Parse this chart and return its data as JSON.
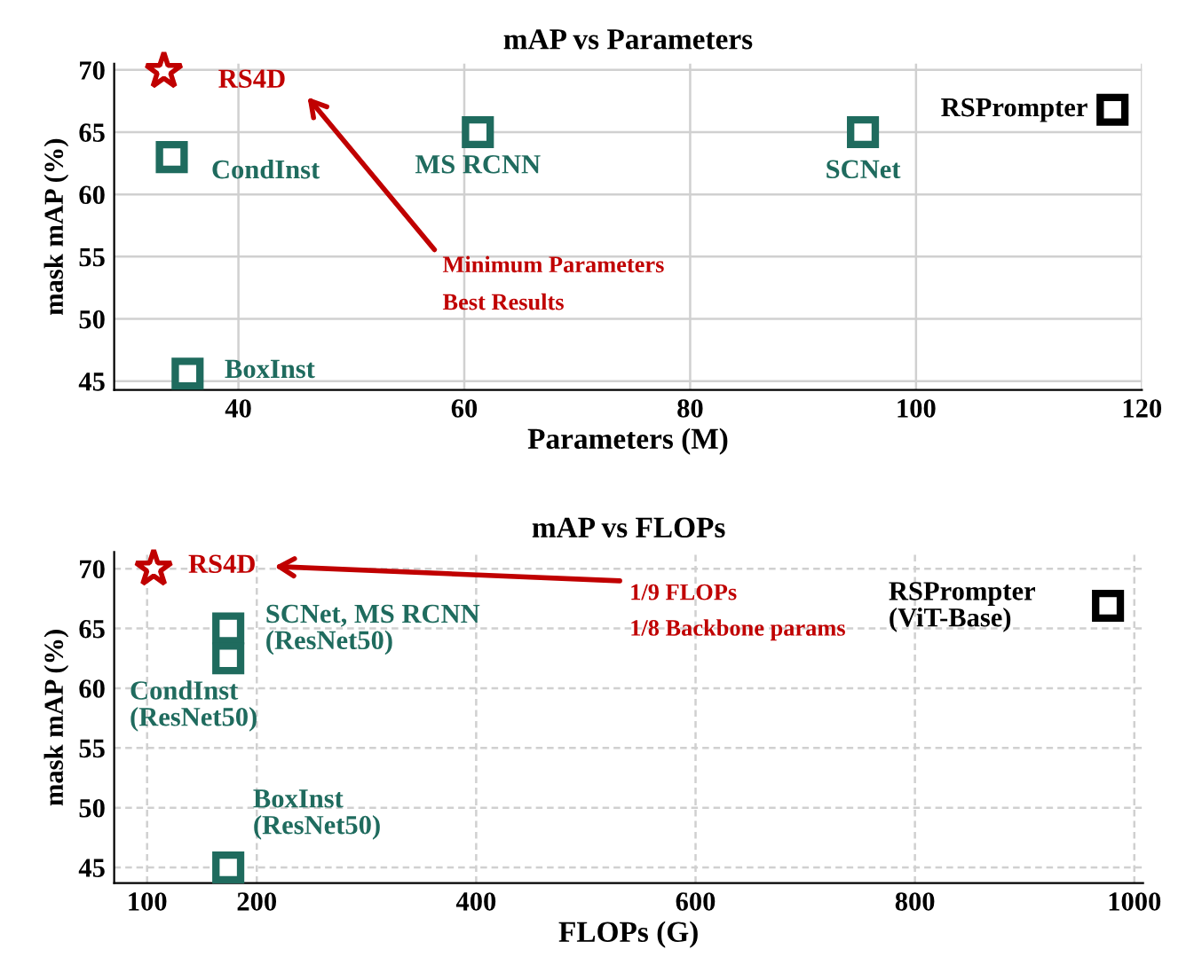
{
  "chart_data": [
    {
      "type": "scatter",
      "title": "mAP vs Parameters",
      "xlabel": "Parameters (M)",
      "ylabel": "mask mAP (%)",
      "xlim": [
        29,
        120
      ],
      "ylim": [
        44.3,
        70.5
      ],
      "xticks": [
        40,
        60,
        80,
        100,
        120
      ],
      "yticks": [
        45,
        50,
        55,
        60,
        65,
        70
      ],
      "grid": true,
      "legend": false,
      "series": [
        {
          "color": "#c00000",
          "marker": "star",
          "x": [
            33.4
          ],
          "values": [
            69.9
          ]
        },
        {
          "color": "#1f6b5e",
          "marker": "square",
          "x": [
            34.1,
            35.5,
            61.2,
            95.3
          ],
          "values": [
            63.0,
            45.6,
            65.0,
            65.0
          ]
        },
        {
          "color": "#000000",
          "marker": "square",
          "x": [
            117.4
          ],
          "values": [
            66.8
          ]
        }
      ],
      "annotations": [
        {
          "text": "RS4D",
          "x": 33.4,
          "y": 69.9
        },
        {
          "text": "CondInst",
          "x": 34.1,
          "y": 63.0
        },
        {
          "text": "MS RCNN",
          "x": 61.2,
          "y": 65.0
        },
        {
          "text": "SCNet",
          "x": 95.3,
          "y": 65.0
        },
        {
          "text": "RSPrompter",
          "x": 117.4,
          "y": 66.8
        },
        {
          "text": "BoxInst",
          "x": 35.5,
          "y": 45.6
        },
        "Minimum Parameters\nBest Results"
      ]
    },
    {
      "type": "scatter",
      "title": "mAP vs FLOPs",
      "xlabel": "FLOPs (G)",
      "ylabel": "mask mAP (%)",
      "xlim": [
        70,
        1008
      ],
      "ylim": [
        43.7,
        71.4
      ],
      "xticks": [
        100,
        200,
        400,
        600,
        800,
        1000
      ],
      "yticks": [
        45,
        50,
        55,
        60,
        65,
        70
      ],
      "grid": true,
      "legend": false,
      "series": [
        {
          "color": "#c00000",
          "marker": "star",
          "x": [
            106
          ],
          "values": [
            70.0
          ]
        },
        {
          "color": "#1f6b5e",
          "marker": "square",
          "x": [
            174,
            174,
            174
          ],
          "values": [
            65.0,
            62.5,
            45.0
          ]
        },
        {
          "color": "#000000",
          "marker": "square",
          "x": [
            976
          ],
          "values": [
            66.9
          ]
        }
      ],
      "annotations": [
        {
          "text": "RS4D",
          "x": 106,
          "y": 70.0
        },
        {
          "text": "SCNet, MS RCNN\n(ResNet50)",
          "x": 174,
          "y": 65.0
        },
        {
          "text": "CondInst\n(ResNet50)",
          "x": 174,
          "y": 62.5
        },
        {
          "text": "BoxInst\n(ResNet50)",
          "x": 174,
          "y": 45.0
        },
        {
          "text": "RSPrompter\n(ViT-Base)",
          "x": 976,
          "y": 66.9
        },
        "1/9 FLOPs\n1/8 Backbone params"
      ]
    }
  ]
}
